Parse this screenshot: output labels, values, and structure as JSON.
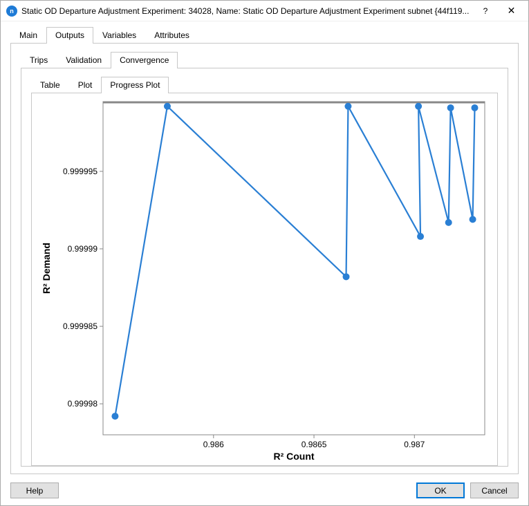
{
  "window": {
    "app_icon_letter": "n",
    "title": "Static OD Departure Adjustment Experiment: 34028, Name: Static OD Departure Adjustment Experiment subnet {44f119...",
    "help_label": "?",
    "close_label": "✕"
  },
  "tabs_main": {
    "items": [
      "Main",
      "Outputs",
      "Variables",
      "Attributes"
    ],
    "active_index": 1
  },
  "tabs_outputs": {
    "items": [
      "Trips",
      "Validation",
      "Convergence"
    ],
    "active_index": 2
  },
  "tabs_convergence": {
    "items": [
      "Table",
      "Plot",
      "Progress Plot"
    ],
    "active_index": 2
  },
  "chart": {
    "type": "line",
    "x_label": "R² Count",
    "y_label": "R² Demand",
    "label_fontsize": 14,
    "tick_fontsize": 12,
    "plot_bg": "#ffffff",
    "outer_bg": "#ffffff",
    "border_color": "#888888",
    "top_border_thick": true,
    "series_color": "#2a7fd4",
    "line_width": 2.2,
    "marker_radius": 5,
    "xlim": [
      0.98545,
      0.98735
    ],
    "ylim": [
      0.999978,
      0.9999995
    ],
    "x_ticks": [
      0.986,
      0.9865,
      0.987
    ],
    "x_tick_labels": [
      "0.986",
      "0.9865",
      "0.987"
    ],
    "y_ticks": [
      0.99998,
      0.999985,
      0.99999,
      0.999995
    ],
    "y_tick_labels": [
      "0.99998",
      "0.999985",
      "0.99999",
      "0.999995"
    ],
    "points": [
      [
        0.98551,
        0.9999792
      ],
      [
        0.98577,
        0.9999992
      ],
      [
        0.98666,
        0.9999882
      ],
      [
        0.98667,
        0.9999992
      ],
      [
        0.98703,
        0.9999908
      ],
      [
        0.98702,
        0.9999992
      ],
      [
        0.98717,
        0.9999917
      ],
      [
        0.98718,
        0.9999991
      ],
      [
        0.98729,
        0.9999919
      ],
      [
        0.9873,
        0.9999991
      ]
    ]
  },
  "footer": {
    "help": "Help",
    "ok": "OK",
    "cancel": "Cancel"
  }
}
